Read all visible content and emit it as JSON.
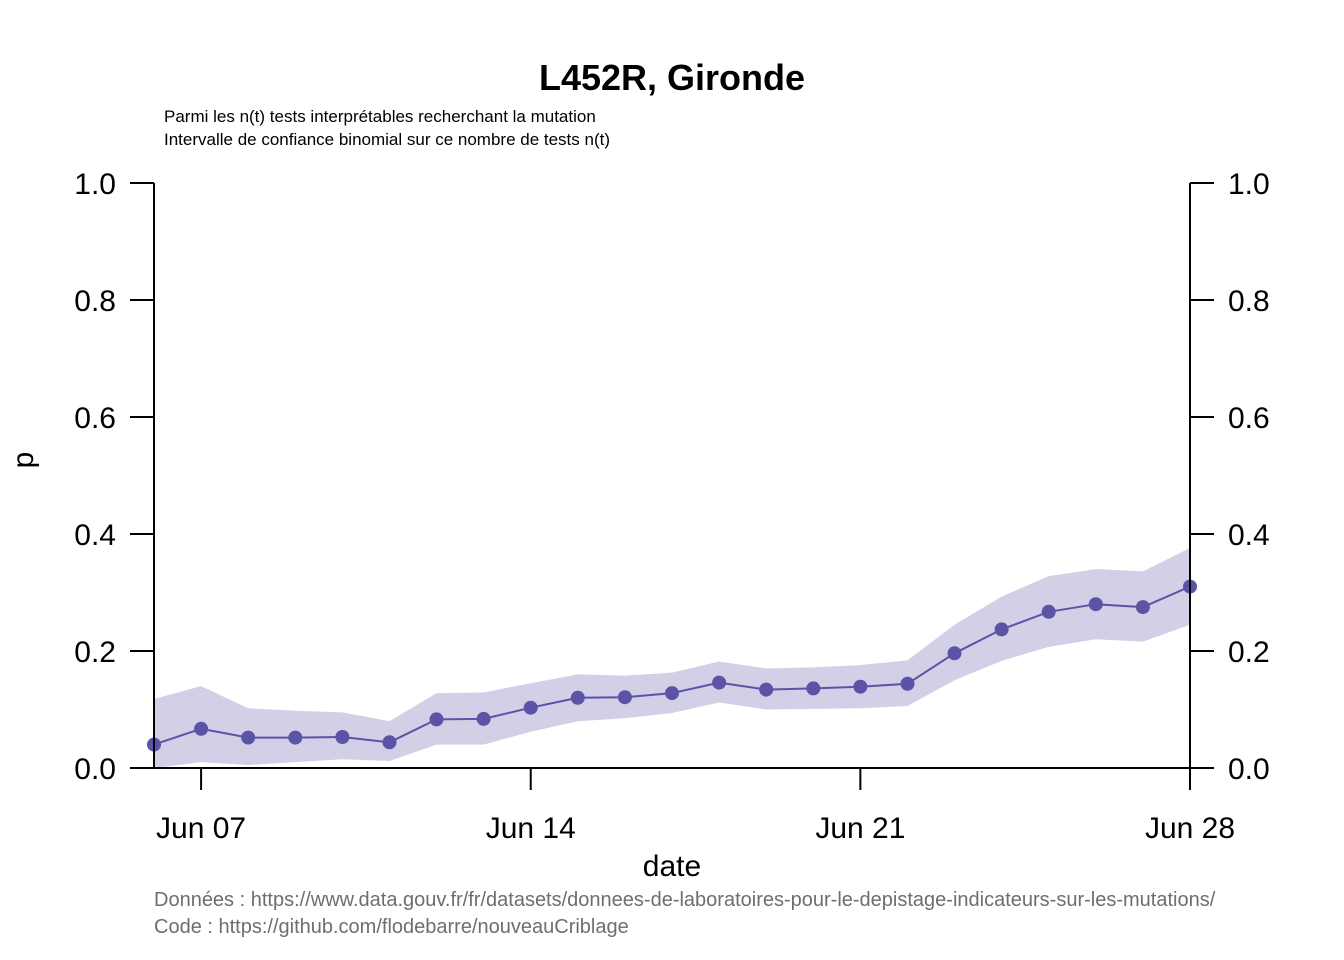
{
  "chart_data": {
    "type": "line",
    "title": "L452R, Gironde",
    "subtitle_lines": [
      "Parmi les n(t) tests interprétables recherchant la mutation",
      "Intervalle de confiance binomial sur ce nombre de tests n(t)"
    ],
    "xlabel": "date",
    "ylabel": "p",
    "x_ticks": [
      {
        "date": "2021-06-07",
        "label": "Jun 07"
      },
      {
        "date": "2021-06-14",
        "label": "Jun 14"
      },
      {
        "date": "2021-06-21",
        "label": "Jun 21"
      },
      {
        "date": "2021-06-28",
        "label": "Jun 28"
      }
    ],
    "xlim": [
      "2021-06-06",
      "2021-06-28"
    ],
    "ylim": [
      0,
      1
    ],
    "y_ticks": [
      "0.0",
      "0.2",
      "0.4",
      "0.6",
      "0.8",
      "1.0"
    ],
    "right_axis": true,
    "grid": false,
    "colors": {
      "line": "#5b53a6",
      "band": "#d2cfe6"
    },
    "series": [
      {
        "x": [
          "2021-06-06",
          "2021-06-07",
          "2021-06-08",
          "2021-06-09",
          "2021-06-10",
          "2021-06-11",
          "2021-06-12",
          "2021-06-13",
          "2021-06-14",
          "2021-06-15",
          "2021-06-16",
          "2021-06-17",
          "2021-06-18",
          "2021-06-19",
          "2021-06-20",
          "2021-06-21",
          "2021-06-22",
          "2021-06-23",
          "2021-06-24",
          "2021-06-25",
          "2021-06-26",
          "2021-06-27",
          "2021-06-28"
        ],
        "values": [
          0.04,
          0.067,
          0.052,
          0.052,
          0.053,
          0.044,
          0.083,
          0.084,
          0.103,
          0.12,
          0.121,
          0.128,
          0.146,
          0.134,
          0.136,
          0.139,
          0.144,
          0.196,
          0.237,
          0.267,
          0.28,
          0.275,
          0.31
        ],
        "lower": [
          0.0,
          0.01,
          0.005,
          0.01,
          0.015,
          0.012,
          0.04,
          0.04,
          0.062,
          0.08,
          0.085,
          0.094,
          0.112,
          0.1,
          0.101,
          0.102,
          0.106,
          0.15,
          0.183,
          0.207,
          0.22,
          0.216,
          0.245
        ],
        "upper": [
          0.118,
          0.14,
          0.102,
          0.098,
          0.095,
          0.08,
          0.128,
          0.129,
          0.145,
          0.16,
          0.158,
          0.163,
          0.182,
          0.17,
          0.172,
          0.176,
          0.184,
          0.245,
          0.293,
          0.328,
          0.34,
          0.336,
          0.376
        ]
      }
    ]
  },
  "caption": {
    "line1": "Données : https://www.data.gouv.fr/fr/datasets/donnees-de-laboratoires-pour-le-depistage-indicateurs-sur-les-mutations/",
    "line2": "Code : https://github.com/flodebarre/nouveauCriblage"
  }
}
